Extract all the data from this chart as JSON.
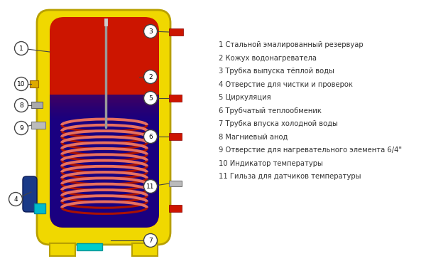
{
  "bg_color": "#f2f2f2",
  "outer_body_color": "#f0d800",
  "outer_body_edge": "#b8a000",
  "inner_red": "#cc1500",
  "inner_blue": "#1a0080",
  "coil_dark": "#aa1100",
  "coil_light": "#e87060",
  "pipe_red": "#cc1500",
  "pipe_cyan": "#00cccc",
  "pipe_gray": "#999999",
  "pipe_yellow_small": "#ddaa00",
  "blue_attach": "#2255bb",
  "cyan_attach": "#00aaaa",
  "legend_lines": [
    "1 Стальной эмалированный резервуар",
    "2 Кожух водонагреватела",
    "3 Трубка выпуска тёплой воды",
    "4 Отверстие для чистки и проверок",
    "5 Циркуляция",
    "6 Трубчатый теплообменик",
    "7 Трубка впуска холодной воды",
    "8 Магниевый анод",
    "9 Отверстие для нагревательного элемента 6/4\"",
    "10 Индикатор температуры",
    "11 Гильза для датчиков температуры"
  ]
}
